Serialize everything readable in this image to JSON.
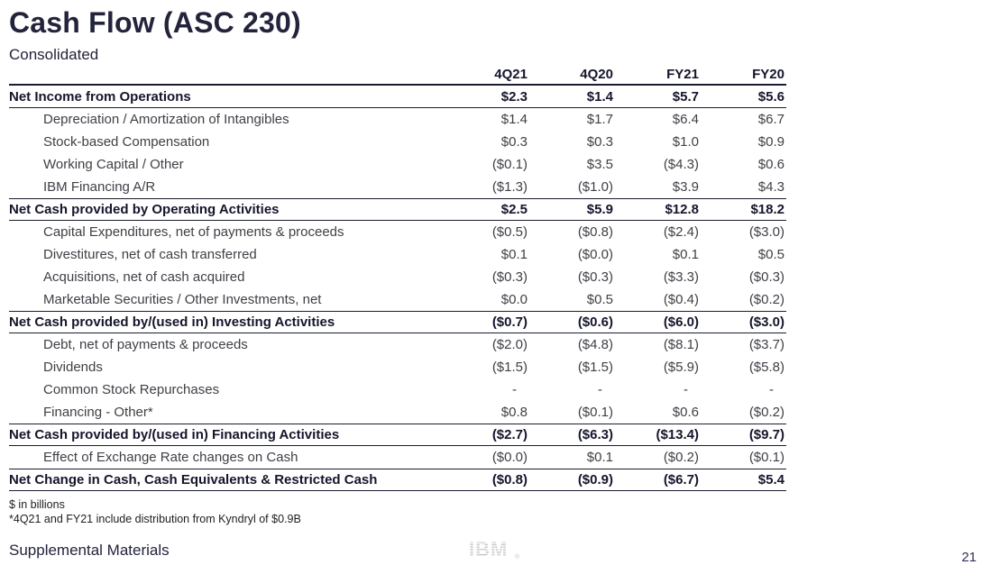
{
  "slide": {
    "title": "Cash Flow (ASC 230)",
    "subtitle": "Consolidated",
    "page_number": "21",
    "footnote_units": "$ in billions",
    "footnote_detail": "*4Q21 and FY21 include distribution from Kyndryl of $0.9B",
    "footer_label": "Supplemental Materials",
    "logo_text": "IBM"
  },
  "colors": {
    "title": "#23233c",
    "text": "#3f3f46",
    "bold_text": "#15152c",
    "rule": "#1c1c30",
    "logo_gray": "#c9c9ce",
    "page_number": "#30305c"
  },
  "table": {
    "columns": [
      "4Q21",
      "4Q20",
      "FY21",
      "FY20"
    ],
    "rows": [
      {
        "label": "Net Income from Operations",
        "type": "total",
        "values": [
          "$2.3",
          "$1.4",
          "$5.7",
          "$5.6"
        ]
      },
      {
        "label": "Depreciation / Amortization of Intangibles",
        "type": "detail",
        "values": [
          "$1.4",
          "$1.7",
          "$6.4",
          "$6.7"
        ]
      },
      {
        "label": "Stock-based Compensation",
        "type": "detail",
        "values": [
          "$0.3",
          "$0.3",
          "$1.0",
          "$0.9"
        ]
      },
      {
        "label": "Working Capital / Other",
        "type": "detail",
        "values": [
          "($0.1)",
          "$3.5",
          "($4.3)",
          "$0.6"
        ]
      },
      {
        "label": "IBM Financing A/R",
        "type": "detail",
        "values": [
          "($1.3)",
          "($1.0)",
          "$3.9",
          "$4.3"
        ]
      },
      {
        "label": "Net Cash provided by Operating Activities",
        "type": "total",
        "values": [
          "$2.5",
          "$5.9",
          "$12.8",
          "$18.2"
        ]
      },
      {
        "label": "Capital Expenditures, net of payments & proceeds",
        "type": "detail",
        "values": [
          "($0.5)",
          "($0.8)",
          "($2.4)",
          "($3.0)"
        ]
      },
      {
        "label": "Divestitures, net of cash transferred",
        "type": "detail",
        "values": [
          "$0.1",
          "($0.0)",
          "$0.1",
          "$0.5"
        ]
      },
      {
        "label": "Acquisitions, net of cash acquired",
        "type": "detail",
        "values": [
          "($0.3)",
          "($0.3)",
          "($3.3)",
          "($0.3)"
        ]
      },
      {
        "label": "Marketable Securities / Other Investments, net",
        "type": "detail",
        "values": [
          "$0.0",
          "$0.5",
          "($0.4)",
          "($0.2)"
        ]
      },
      {
        "label": "Net Cash provided by/(used in) Investing Activities",
        "type": "total",
        "values": [
          "($0.7)",
          "($0.6)",
          "($6.0)",
          "($3.0)"
        ]
      },
      {
        "label": "Debt, net of payments & proceeds",
        "type": "detail",
        "values": [
          "($2.0)",
          "($4.8)",
          "($8.1)",
          "($3.7)"
        ]
      },
      {
        "label": "Dividends",
        "type": "detail",
        "values": [
          "($1.5)",
          "($1.5)",
          "($5.9)",
          "($5.8)"
        ]
      },
      {
        "label": "Common Stock Repurchases",
        "type": "detail",
        "values": [
          "-",
          "-",
          "-",
          "-"
        ]
      },
      {
        "label": "Financing - Other*",
        "type": "detail",
        "values": [
          "$0.8",
          "($0.1)",
          "$0.6",
          "($0.2)"
        ]
      },
      {
        "label": "Net Cash provided by/(used in) Financing Activities",
        "type": "total",
        "values": [
          "($2.7)",
          "($6.3)",
          "($13.4)",
          "($9.7)"
        ]
      },
      {
        "label": "Effect of Exchange Rate changes on Cash",
        "type": "detail",
        "values": [
          "($0.0)",
          "$0.1",
          "($0.2)",
          "($0.1)"
        ]
      },
      {
        "label": "Net Change in Cash, Cash Equivalents & Restricted Cash",
        "type": "total",
        "values": [
          "($0.8)",
          "($0.9)",
          "($6.7)",
          "$5.4"
        ]
      }
    ]
  }
}
